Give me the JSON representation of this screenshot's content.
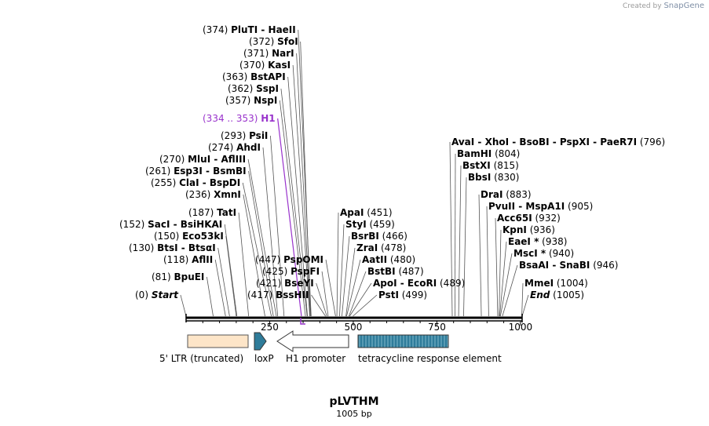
{
  "watermark": {
    "prefix": "Created by",
    "brand": "SnapGene"
  },
  "plasmid": {
    "name": "pLVTHM",
    "length_label": "1005 bp",
    "length": 1005
  },
  "scale": {
    "ticks": [
      250,
      500,
      750,
      1000
    ]
  },
  "sites": [
    {
      "pos": "(374)",
      "label": "PluTI  - HaeII",
      "bp": 374
    },
    {
      "pos": "(372)",
      "label": "SfoI",
      "bp": 372
    },
    {
      "pos": "(371)",
      "label": "NarI",
      "bp": 371
    },
    {
      "pos": "(370)",
      "label": "KasI",
      "bp": 370
    },
    {
      "pos": "(363)",
      "label": "BstAPI",
      "bp": 363
    },
    {
      "pos": "(362)",
      "label": "SspI",
      "bp": 362
    },
    {
      "pos": "(357)",
      "label": "NspI",
      "bp": 357
    },
    {
      "pos": "(334 .. 353)",
      "label": "H1",
      "bp": 345,
      "color": "#9933cc"
    },
    {
      "pos": "(293)",
      "label": "PsiI",
      "bp": 293
    },
    {
      "pos": "(274)",
      "label": "AhdI",
      "bp": 274
    },
    {
      "pos": "(270)",
      "label": "MluI  - AflIII",
      "bp": 270
    },
    {
      "pos": "(261)",
      "label": "Esp3I  - BsmBI",
      "bp": 261
    },
    {
      "pos": "(255)",
      "label": "ClaI  - BspDI",
      "bp": 255
    },
    {
      "pos": "(236)",
      "label": "XmnI",
      "bp": 236
    },
    {
      "pos": "(187)",
      "label": "TatI",
      "bp": 187
    },
    {
      "pos": "(152)",
      "label": "SacI  - BsiHKAI",
      "bp": 152
    },
    {
      "pos": "(150)",
      "label": "Eco53kI",
      "bp": 150
    },
    {
      "pos": "(130)",
      "label": "BtsI  - BtsαI",
      "bp": 130
    },
    {
      "pos": "(118)",
      "label": "AflII",
      "bp": 118
    },
    {
      "pos": "(81)",
      "label": "BpuEI",
      "bp": 81
    },
    {
      "pos": "(0)",
      "label": "Start",
      "bp": 0,
      "italic": true
    },
    {
      "pos": "(447)",
      "label": "PspOMI",
      "bp": 447
    },
    {
      "pos": "(425)",
      "label": "PspFI",
      "bp": 425
    },
    {
      "pos": "(421)",
      "label": "BseYI",
      "bp": 421
    },
    {
      "pos": "(417)",
      "label": "BssHII",
      "bp": 417
    },
    {
      "pos": "(451)",
      "label": "ApaI",
      "bp": 451
    },
    {
      "pos": "(459)",
      "label": "StyI",
      "bp": 459
    },
    {
      "pos": "(466)",
      "label": "BsrBI",
      "bp": 466
    },
    {
      "pos": "(478)",
      "label": "ZraI",
      "bp": 478
    },
    {
      "pos": "(480)",
      "label": "AatII",
      "bp": 480
    },
    {
      "pos": "(487)",
      "label": "BstBI",
      "bp": 487
    },
    {
      "pos": "(489)",
      "label": "ApoI  - EcoRI",
      "bp": 489
    },
    {
      "pos": "(499)",
      "label": "PstI",
      "bp": 499
    },
    {
      "pos": "(796)",
      "label": "AvaI  - XhoI  - BsoBI  - PspXI  - PaeR7I",
      "bp": 796
    },
    {
      "pos": "(804)",
      "label": "BamHI",
      "bp": 804
    },
    {
      "pos": "(815)",
      "label": "BstXI",
      "bp": 815
    },
    {
      "pos": "(830)",
      "label": "BbsI",
      "bp": 830
    },
    {
      "pos": "(883)",
      "label": "DraI",
      "bp": 883
    },
    {
      "pos": "(905)",
      "label": "PvuII  - MspA1I",
      "bp": 905
    },
    {
      "pos": "(932)",
      "label": "Acc65I",
      "bp": 932
    },
    {
      "pos": "(936)",
      "label": "KpnI",
      "bp": 936
    },
    {
      "pos": "(938)",
      "label": "EaeI *",
      "bp": 938
    },
    {
      "pos": "(940)",
      "label": "MscI *",
      "bp": 940
    },
    {
      "pos": "(946)",
      "label": "BsaAI  - SnaBI",
      "bp": 946
    },
    {
      "pos": "(1004)",
      "label": "MmeI",
      "bp": 1004
    },
    {
      "pos": "(1005)",
      "label": "End",
      "bp": 1005,
      "italic": true
    }
  ],
  "features": [
    {
      "name": "5' LTR (truncated)",
      "type": "box",
      "color": "#fde5c8"
    },
    {
      "name": "loxP",
      "type": "arrow-right",
      "color": "#2f7c9a"
    },
    {
      "name": "H1 promoter",
      "type": "arrow-left",
      "color": "#ffffff"
    },
    {
      "name": "tetracycline response element",
      "type": "box-hatched",
      "color": "#2f7c9a"
    }
  ]
}
